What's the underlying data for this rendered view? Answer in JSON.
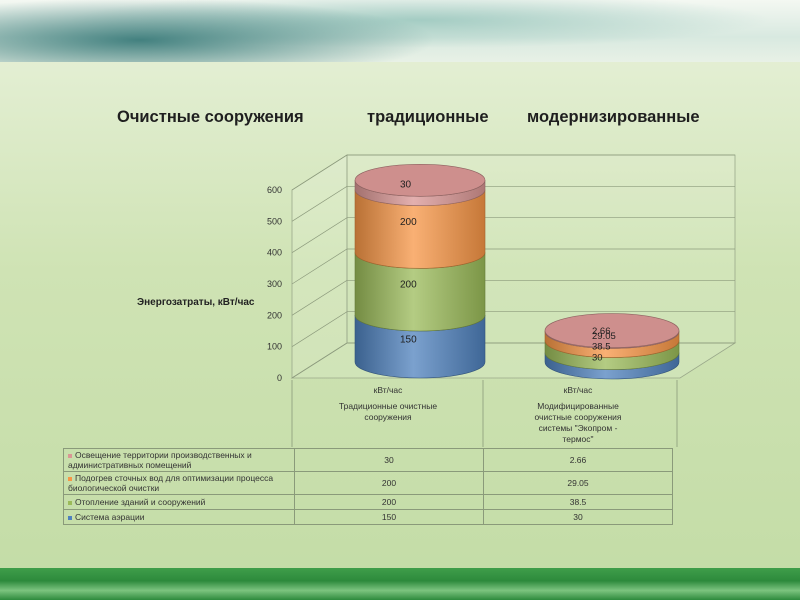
{
  "headings": [
    "Очистные сооружения",
    "традиционные",
    "модернизированные"
  ],
  "chart_data": {
    "type": "bar",
    "stacked": true,
    "ylabel": "Энергозатраты, кВт/час",
    "ylim": [
      0,
      600
    ],
    "yticks": [
      0,
      100,
      200,
      300,
      400,
      500,
      600
    ],
    "unit_labels": [
      "кВт/час",
      "кВт/час"
    ],
    "categories": [
      "Традиционные очистные сооружения",
      "Модифицированные очистные сооружения системы \"Экопром - термос\""
    ],
    "series": [
      {
        "name": "Система аэрации",
        "color": "#4f81bd",
        "values": [
          150,
          30
        ],
        "labels": [
          "150",
          "30"
        ]
      },
      {
        "name": "Отопление зданий и сооружений",
        "color": "#9bbb59",
        "values": [
          200,
          38.5
        ],
        "labels": [
          "200",
          "38.5"
        ]
      },
      {
        "name": "Подогрев сточных вод для оптимизации процесса биологической очистки",
        "color": "#f79646",
        "values": [
          200,
          29.05
        ],
        "labels": [
          "200",
          "29.05"
        ]
      },
      {
        "name": "Освещение территории производственных и административных помещений",
        "color": "#d99694",
        "values": [
          30,
          2.66
        ],
        "labels": [
          "30",
          "2.66"
        ]
      }
    ]
  }
}
